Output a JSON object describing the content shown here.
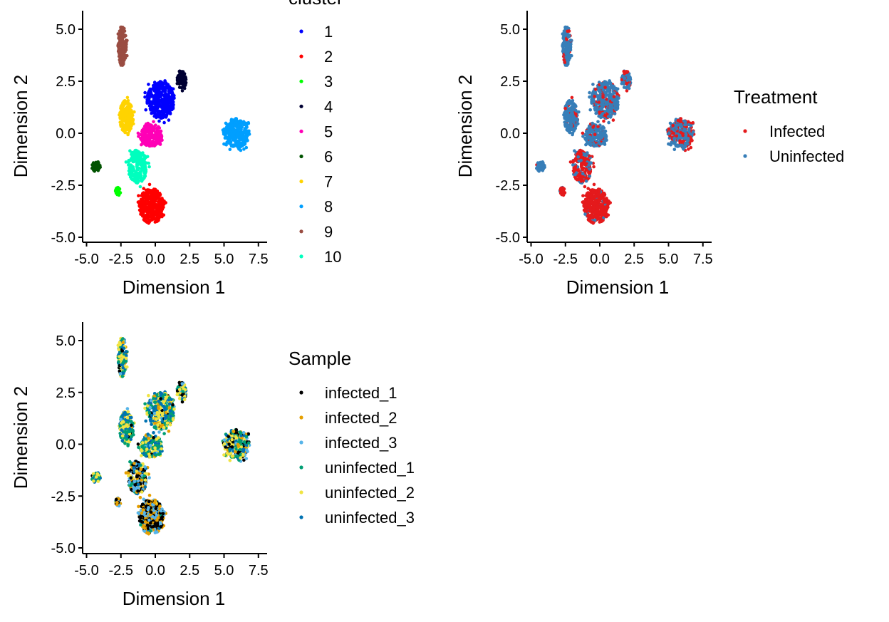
{
  "chart_data": [
    {
      "type": "scatter",
      "panel": "cluster",
      "xlabel": "Dimension 1",
      "ylabel": "Dimension 2",
      "xlim": [
        -5.3,
        8.2
      ],
      "ylim": [
        -5.3,
        5.9
      ],
      "xticks": [
        "-5.0",
        "-2.5",
        "0.0",
        "2.5",
        "5.0",
        "7.5"
      ],
      "yticks": [
        "-5.0",
        "-2.5",
        "0.0",
        "2.5",
        "5.0"
      ],
      "grid": false,
      "legend": {
        "title": "cluster",
        "placement": "right",
        "entries": [
          "1",
          "2",
          "3",
          "4",
          "5",
          "6",
          "7",
          "8",
          "9",
          "10"
        ],
        "colors": [
          "#0000FF",
          "#FF0000",
          "#00FF00",
          "#000033",
          "#FF00B6",
          "#005300",
          "#FFD300",
          "#009FFF",
          "#9A4D42",
          "#00FFBE"
        ]
      }
    },
    {
      "type": "scatter",
      "panel": "treatment",
      "xlabel": "Dimension 1",
      "ylabel": "Dimension 2",
      "xticks": [
        "-5.0",
        "-2.5",
        "0.0",
        "2.5",
        "5.0",
        "7.5"
      ],
      "yticks": [
        "-5.0",
        "-2.5",
        "0.0",
        "2.5",
        "5.0"
      ],
      "grid": false,
      "legend": {
        "title": "Treatment",
        "placement": "right",
        "entries": [
          "Infected",
          "Uninfected"
        ],
        "colors": [
          "#E41A1C",
          "#377EB8"
        ]
      }
    },
    {
      "type": "scatter",
      "panel": "sample",
      "xlabel": "Dimension 1",
      "ylabel": "Dimension 2",
      "xticks": [
        "-5.0",
        "-2.5",
        "0.0",
        "2.5",
        "5.0",
        "7.5"
      ],
      "yticks": [
        "-5.0",
        "-2.5",
        "0.0",
        "2.5",
        "5.0"
      ],
      "grid": false,
      "legend": {
        "title": "Sample",
        "placement": "right",
        "entries": [
          "infected_1",
          "infected_2",
          "infected_3",
          "uninfected_1",
          "uninfected_2",
          "uninfected_3"
        ],
        "colors": [
          "#000000",
          "#E69F00",
          "#56B4E9",
          "#009E73",
          "#F0E442",
          "#0072B2"
        ]
      }
    }
  ],
  "clusters": [
    {
      "id": "9",
      "center": [
        -2.4,
        4.2
      ],
      "spread": [
        0.3,
        1.0
      ],
      "n": 150,
      "infected_fraction": 0.12
    },
    {
      "id": "7",
      "center": [
        -2.1,
        0.8
      ],
      "spread": [
        0.5,
        0.8
      ],
      "n": 200,
      "infected_fraction": 0.1
    },
    {
      "id": "1",
      "center": [
        0.4,
        1.6
      ],
      "spread": [
        1.0,
        0.9
      ],
      "n": 350,
      "infected_fraction": 0.2
    },
    {
      "id": "4",
      "center": [
        1.9,
        2.5
      ],
      "spread": [
        0.35,
        0.5
      ],
      "n": 70,
      "infected_fraction": 0.3
    },
    {
      "id": "5",
      "center": [
        -0.3,
        -0.1
      ],
      "spread": [
        0.8,
        0.55
      ],
      "n": 220,
      "infected_fraction": 0.15
    },
    {
      "id": "10",
      "center": [
        -1.3,
        -1.6
      ],
      "spread": [
        0.7,
        0.8
      ],
      "n": 220,
      "infected_fraction": 0.7
    },
    {
      "id": "2",
      "center": [
        -0.3,
        -3.5
      ],
      "spread": [
        0.9,
        0.85
      ],
      "n": 380,
      "infected_fraction": 0.95
    },
    {
      "id": "3",
      "center": [
        -2.7,
        -2.8
      ],
      "spread": [
        0.2,
        0.2
      ],
      "n": 30,
      "infected_fraction": 0.9
    },
    {
      "id": "6",
      "center": [
        -4.3,
        -1.6
      ],
      "spread": [
        0.3,
        0.25
      ],
      "n": 40,
      "infected_fraction": 0.1
    },
    {
      "id": "8",
      "center": [
        5.9,
        0.0
      ],
      "spread": [
        0.95,
        0.7
      ],
      "n": 300,
      "infected_fraction": 0.45
    }
  ]
}
